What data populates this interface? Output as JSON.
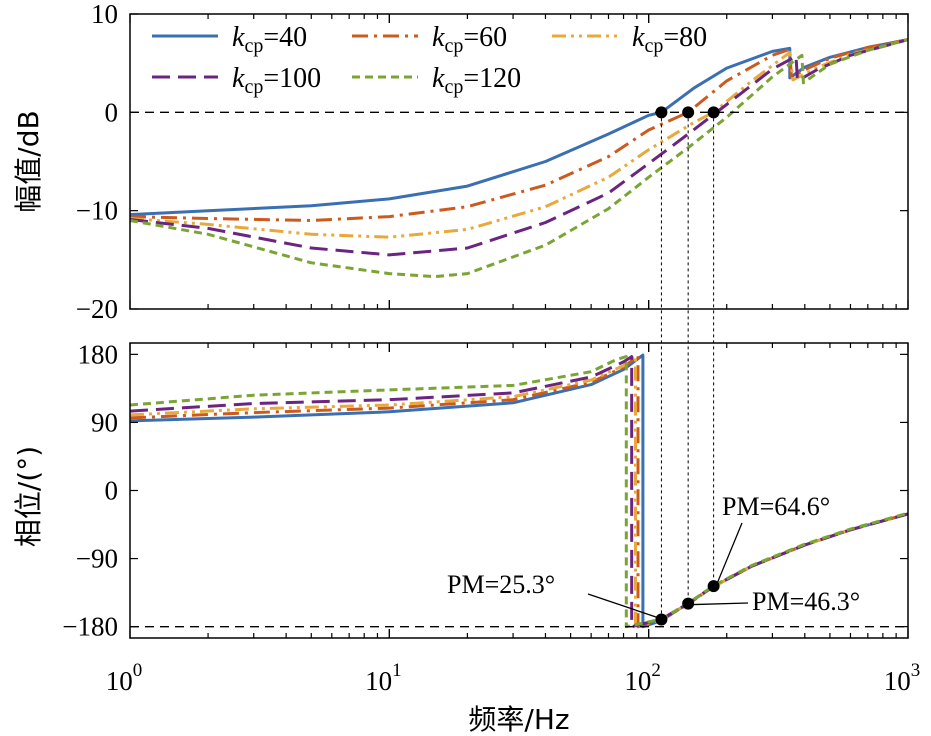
{
  "chart_data": [
    {
      "type": "line",
      "panel": "magnitude",
      "ylabel": "幅值/dB",
      "xscale": "log",
      "xlim": [
        1,
        1000
      ],
      "ylim": [
        -20,
        10
      ],
      "yticks": [
        {
          "value": -20,
          "label": "−20"
        },
        {
          "value": -10,
          "label": "−10"
        },
        {
          "value": 0,
          "label": "0"
        },
        {
          "value": 10,
          "label": "10"
        }
      ],
      "reference_line": 0,
      "crossover_points": [
        {
          "x": 112,
          "y": 0
        },
        {
          "x": 142,
          "y": 0
        },
        {
          "x": 178,
          "y": 0
        }
      ],
      "legend": {
        "placement": "top-left",
        "columns": 3
      },
      "series": [
        {
          "name": "40",
          "color": "#3a6fb3",
          "dash": "solid",
          "points": [
            [
              1,
              -10.4
            ],
            [
              2,
              -10
            ],
            [
              5,
              -9.5
            ],
            [
              10,
              -8.8
            ],
            [
              20,
              -7.5
            ],
            [
              40,
              -5
            ],
            [
              70,
              -2.2
            ],
            [
              100,
              -0.3
            ],
            [
              112,
              0
            ],
            [
              150,
              2.5
            ],
            [
              200,
              4.5
            ],
            [
              300,
              6.2
            ],
            [
              350,
              6.5
            ],
            [
              350,
              3.5
            ],
            [
              400,
              4.6
            ],
            [
              500,
              5.6
            ],
            [
              700,
              6.6
            ],
            [
              1000,
              7.4
            ]
          ]
        },
        {
          "name": "60",
          "color": "#cc5a1e",
          "dash": "dashdot",
          "points": [
            [
              1,
              -10.6
            ],
            [
              2,
              -10.8
            ],
            [
              5,
              -11
            ],
            [
              10,
              -10.6
            ],
            [
              20,
              -9.6
            ],
            [
              40,
              -7.4
            ],
            [
              70,
              -4.5
            ],
            [
              100,
              -1.8
            ],
            [
              142,
              0
            ],
            [
              200,
              3.2
            ],
            [
              300,
              5.8
            ],
            [
              350,
              6.4
            ],
            [
              355,
              3.6
            ],
            [
              420,
              4.6
            ],
            [
              500,
              5.5
            ],
            [
              700,
              6.6
            ],
            [
              1000,
              7.4
            ]
          ]
        },
        {
          "name": "80",
          "color": "#e8a93a",
          "dash": "dashdotdot",
          "points": [
            [
              1,
              -10.8
            ],
            [
              2,
              -11.4
            ],
            [
              5,
              -12.4
            ],
            [
              10,
              -12.7
            ],
            [
              20,
              -11.9
            ],
            [
              40,
              -9.6
            ],
            [
              70,
              -6.6
            ],
            [
              100,
              -3.8
            ],
            [
              150,
              -1
            ],
            [
              178,
              0
            ],
            [
              250,
              3.2
            ],
            [
              350,
              6.1
            ],
            [
              360,
              3.3
            ],
            [
              450,
              4.6
            ],
            [
              600,
              5.9
            ],
            [
              1000,
              7.4
            ]
          ]
        },
        {
          "name": "100",
          "color": "#6b2480",
          "dash": "longdash",
          "points": [
            [
              1,
              -10.9
            ],
            [
              2,
              -11.8
            ],
            [
              5,
              -13.8
            ],
            [
              10,
              -14.5
            ],
            [
              20,
              -13.8
            ],
            [
              40,
              -11.2
            ],
            [
              70,
              -8.2
            ],
            [
              100,
              -5.2
            ],
            [
              142,
              -2.2
            ],
            [
              200,
              0.8
            ],
            [
              300,
              4.4
            ],
            [
              370,
              5.7
            ],
            [
              375,
              3.2
            ],
            [
              450,
              4.4
            ],
            [
              600,
              5.8
            ],
            [
              1000,
              7.4
            ]
          ]
        },
        {
          "name": "120",
          "color": "#7aa533",
          "dash": "shortdash",
          "points": [
            [
              1,
              -11
            ],
            [
              2,
              -12.4
            ],
            [
              5,
              -15.3
            ],
            [
              10,
              -16.4
            ],
            [
              15,
              -16.7
            ],
            [
              20,
              -16.4
            ],
            [
              40,
              -13.5
            ],
            [
              70,
              -9.8
            ],
            [
              100,
              -6.6
            ],
            [
              142,
              -3.6
            ],
            [
              200,
              -0.5
            ],
            [
              300,
              3.6
            ],
            [
              390,
              5.8
            ],
            [
              395,
              3
            ],
            [
              500,
              4.9
            ],
            [
              700,
              6.3
            ],
            [
              1000,
              7.4
            ]
          ]
        }
      ]
    },
    {
      "type": "line",
      "panel": "phase",
      "ylabel": "相位/(°)",
      "xlabel": "频率/Hz",
      "xscale": "log",
      "xlim": [
        1,
        1000
      ],
      "ylim": [
        -195,
        195
      ],
      "xticks": [
        {
          "value": 1,
          "base": "10",
          "exp": "0"
        },
        {
          "value": 10,
          "base": "10",
          "exp": "1"
        },
        {
          "value": 100,
          "base": "10",
          "exp": "2"
        },
        {
          "value": 1000,
          "base": "10",
          "exp": "3"
        }
      ],
      "yticks": [
        {
          "value": -180,
          "label": "−180"
        },
        {
          "value": -90,
          "label": "−90"
        },
        {
          "value": 0,
          "label": "0"
        },
        {
          "value": 90,
          "label": "90"
        },
        {
          "value": 180,
          "label": "180"
        }
      ],
      "reference_line": -180,
      "margin_points": [
        {
          "x": 112,
          "y": -170.5
        },
        {
          "x": 142,
          "y": -149.5
        },
        {
          "x": 178,
          "y": -126.5
        }
      ],
      "annotations": [
        {
          "text": "PM=25.3°",
          "x": 112,
          "y": -170.5
        },
        {
          "text": "PM=46.3°",
          "x": 142,
          "y": -149.5
        },
        {
          "text": "PM=64.6°",
          "x": 178,
          "y": -126.5
        }
      ],
      "series": [
        {
          "name": "40",
          "color": "#3a6fb3",
          "dash": "solid",
          "points": [
            [
              1,
              92
            ],
            [
              3,
              97
            ],
            [
              10,
              104
            ],
            [
              30,
              116
            ],
            [
              60,
              140
            ],
            [
              80,
              160
            ],
            [
              95,
              179
            ],
            [
              95,
              -180
            ],
            [
              112,
              -172
            ],
            [
              142,
              -149
            ],
            [
              178,
              -127
            ],
            [
              250,
              -100
            ],
            [
              400,
              -72
            ],
            [
              600,
              -52
            ],
            [
              1000,
              -31
            ]
          ]
        },
        {
          "name": "60",
          "color": "#cc5a1e",
          "dash": "dashdot",
          "points": [
            [
              1,
              96
            ],
            [
              3,
              103
            ],
            [
              10,
              109
            ],
            [
              30,
              120
            ],
            [
              60,
              143
            ],
            [
              80,
              163
            ],
            [
              91,
              178
            ],
            [
              91,
              -180
            ],
            [
              112,
              -171
            ],
            [
              142,
              -150
            ],
            [
              178,
              -127
            ],
            [
              250,
              -100
            ],
            [
              400,
              -72
            ],
            [
              600,
              -52
            ],
            [
              1000,
              -31
            ]
          ]
        },
        {
          "name": "80",
          "color": "#e8a93a",
          "dash": "dashdotdot",
          "points": [
            [
              1,
              100
            ],
            [
              3,
              108
            ],
            [
              10,
              113
            ],
            [
              30,
              124
            ],
            [
              60,
              146
            ],
            [
              80,
              165
            ],
            [
              89,
              178
            ],
            [
              89,
              -180
            ],
            [
              112,
              -170.5
            ],
            [
              142,
              -150
            ],
            [
              178,
              -127
            ],
            [
              250,
              -100
            ],
            [
              400,
              -72
            ],
            [
              600,
              -52
            ],
            [
              1000,
              -31
            ]
          ]
        },
        {
          "name": "100",
          "color": "#6b2480",
          "dash": "longdash",
          "points": [
            [
              1,
              105
            ],
            [
              3,
              115
            ],
            [
              10,
              120
            ],
            [
              30,
              129
            ],
            [
              60,
              150
            ],
            [
              80,
              170
            ],
            [
              86,
              177
            ],
            [
              86,
              -180
            ],
            [
              112,
              -170
            ],
            [
              142,
              -149.5
            ],
            [
              178,
              -126.5
            ],
            [
              250,
              -100
            ],
            [
              400,
              -72
            ],
            [
              600,
              -52
            ],
            [
              1000,
              -31
            ]
          ]
        },
        {
          "name": "120",
          "color": "#7aa533",
          "dash": "shortdash",
          "points": [
            [
              1,
              113
            ],
            [
              3,
              126
            ],
            [
              10,
              133
            ],
            [
              30,
              139
            ],
            [
              60,
              157
            ],
            [
              75,
              173
            ],
            [
              82,
              177
            ],
            [
              82,
              -180
            ],
            [
              112,
              -170
            ],
            [
              142,
              -149
            ],
            [
              178,
              -126
            ],
            [
              250,
              -99
            ],
            [
              400,
              -71
            ],
            [
              600,
              -51
            ],
            [
              1000,
              -30
            ]
          ]
        }
      ]
    }
  ]
}
